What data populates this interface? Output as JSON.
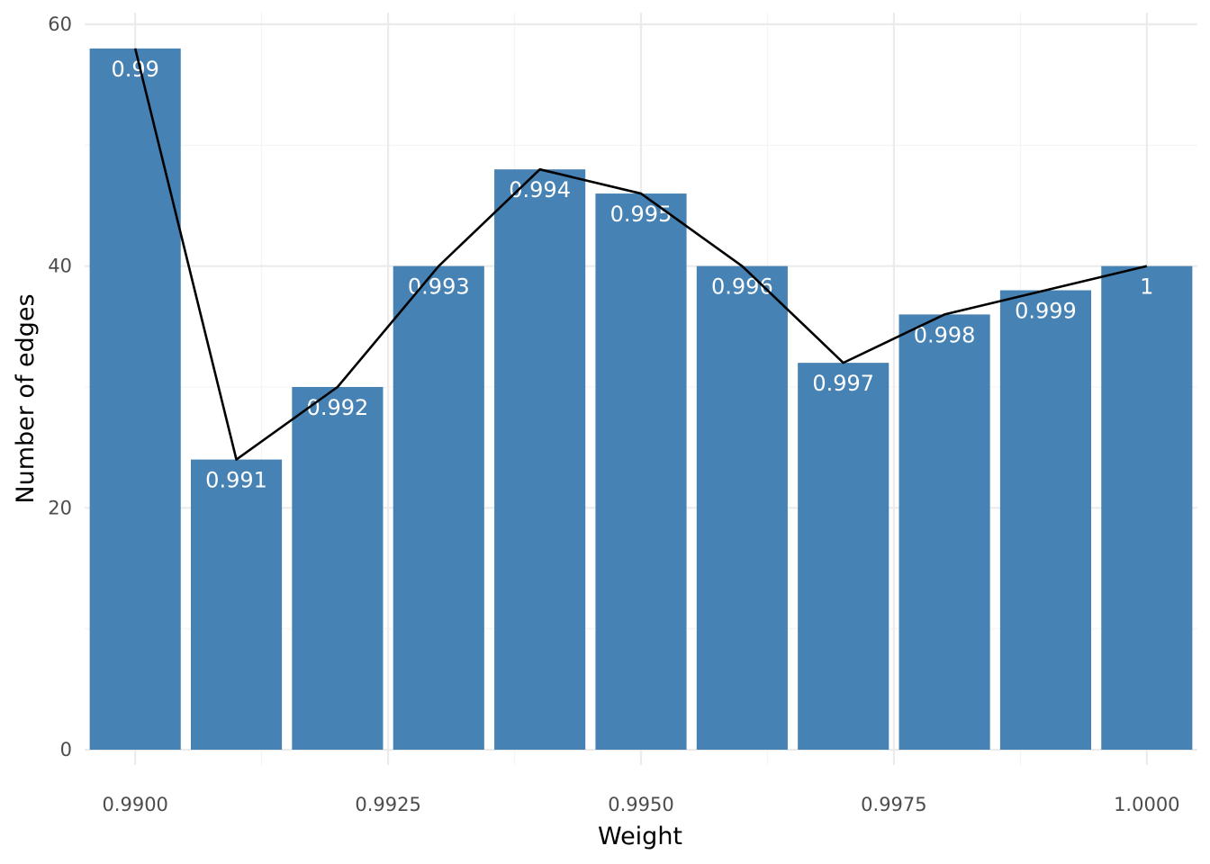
{
  "chart_data": {
    "type": "bar",
    "xlabel": "Weight",
    "ylabel": "Number of edges",
    "x": [
      0.99,
      0.991,
      0.992,
      0.993,
      0.994,
      0.995,
      0.996,
      0.997,
      0.998,
      0.999,
      1.0
    ],
    "values": [
      58,
      24,
      30,
      40,
      48,
      46,
      40,
      32,
      36,
      38,
      40
    ],
    "bar_labels": [
      "0.99",
      "0.991",
      "0.992",
      "0.993",
      "0.994",
      "0.995",
      "0.996",
      "0.997",
      "0.998",
      "0.999",
      "1"
    ],
    "overlay_line": {
      "type": "line",
      "color": "#000000",
      "x": [
        0.99,
        0.991,
        0.992,
        0.993,
        0.994,
        0.995,
        0.996,
        0.997,
        0.998,
        0.999,
        1.0
      ],
      "values": [
        58,
        24,
        30,
        40,
        48,
        46,
        40,
        32,
        36,
        38,
        40
      ]
    },
    "xlim": [
      0.9895,
      1.0005
    ],
    "ylim": [
      0,
      60
    ],
    "x_ticks": [
      0.99,
      0.9925,
      0.995,
      0.9975,
      1.0
    ],
    "x_tick_labels": [
      "0.9900",
      "0.9925",
      "0.9950",
      "0.9975",
      "1.0000"
    ],
    "y_ticks": [
      0,
      20,
      40,
      60
    ],
    "y_tick_labels": [
      "0",
      "20",
      "40",
      "60"
    ],
    "bar_color": "#4682B4",
    "label_color": "#ffffff",
    "grid": true,
    "legend": "none"
  }
}
